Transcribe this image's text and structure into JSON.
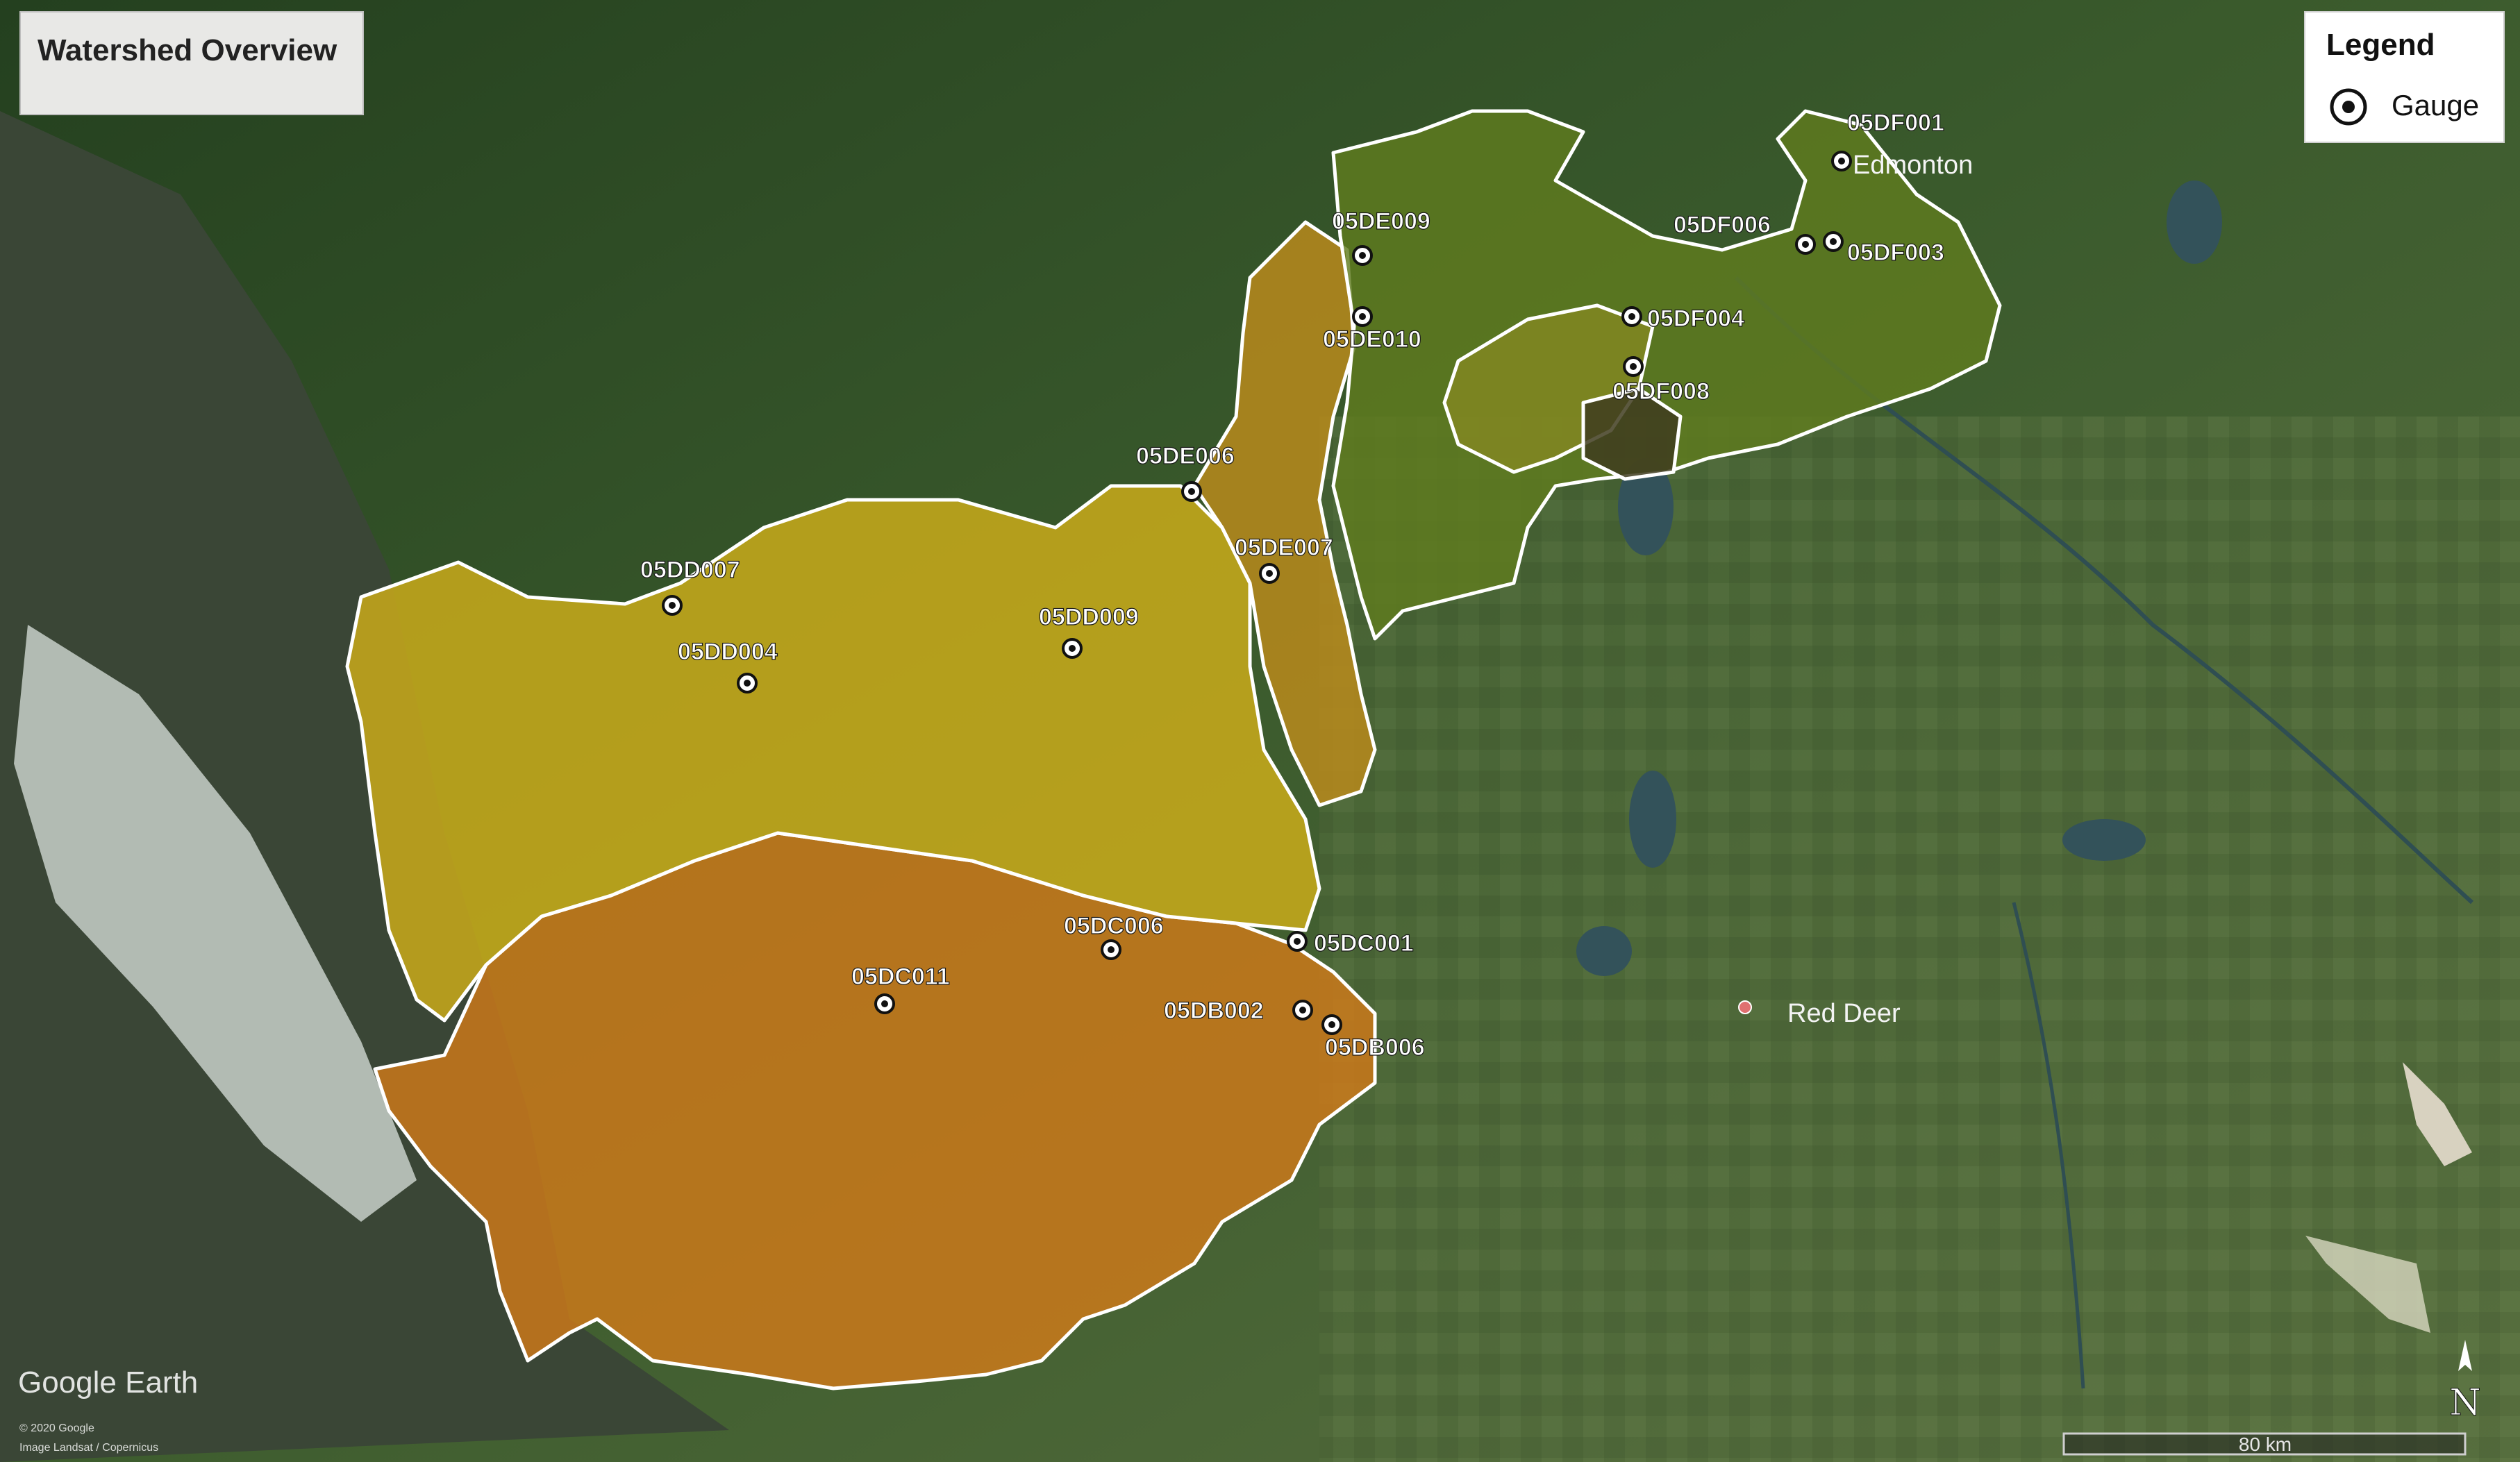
{
  "title": "Watershed Overview",
  "legend": {
    "title": "Legend",
    "gauge_label": "Gauge"
  },
  "gauges": [
    {
      "id": "05DF001"
    },
    {
      "id": "05DF006"
    },
    {
      "id": "05DF003"
    },
    {
      "id": "05DF004"
    },
    {
      "id": "05DF008"
    },
    {
      "id": "05DE009"
    },
    {
      "id": "05DE010"
    },
    {
      "id": "05DE006"
    },
    {
      "id": "05DE007"
    },
    {
      "id": "05DD007"
    },
    {
      "id": "05DD004"
    },
    {
      "id": "05DD009"
    },
    {
      "id": "05DC006"
    },
    {
      "id": "05DC001"
    },
    {
      "id": "05DC011"
    },
    {
      "id": "05DB002"
    },
    {
      "id": "05DB006"
    }
  ],
  "places": {
    "edmonton": "Edmonton",
    "red_deer": "Red Deer"
  },
  "watermark": "Google Earth",
  "attribution": {
    "line1": "© 2020 Google",
    "line2": "Image Landsat / Copernicus"
  },
  "scale_label": "80 km",
  "north_label": "N",
  "colors": {
    "satellite_forest": "#2f4a28",
    "satellite_plains": "#4f6a3a",
    "mountains": "#3a4636",
    "snow": "#e6ece8",
    "basin_DF": "#6f7f1e",
    "basin_DE_upper": "#5f7b1e",
    "basin_DE": "#b98a1c",
    "basin_DD": "#cfae1a",
    "basin_DC": "#cf7a1a",
    "basin_DB": "#c8741e",
    "boundary": "#ffffff"
  }
}
